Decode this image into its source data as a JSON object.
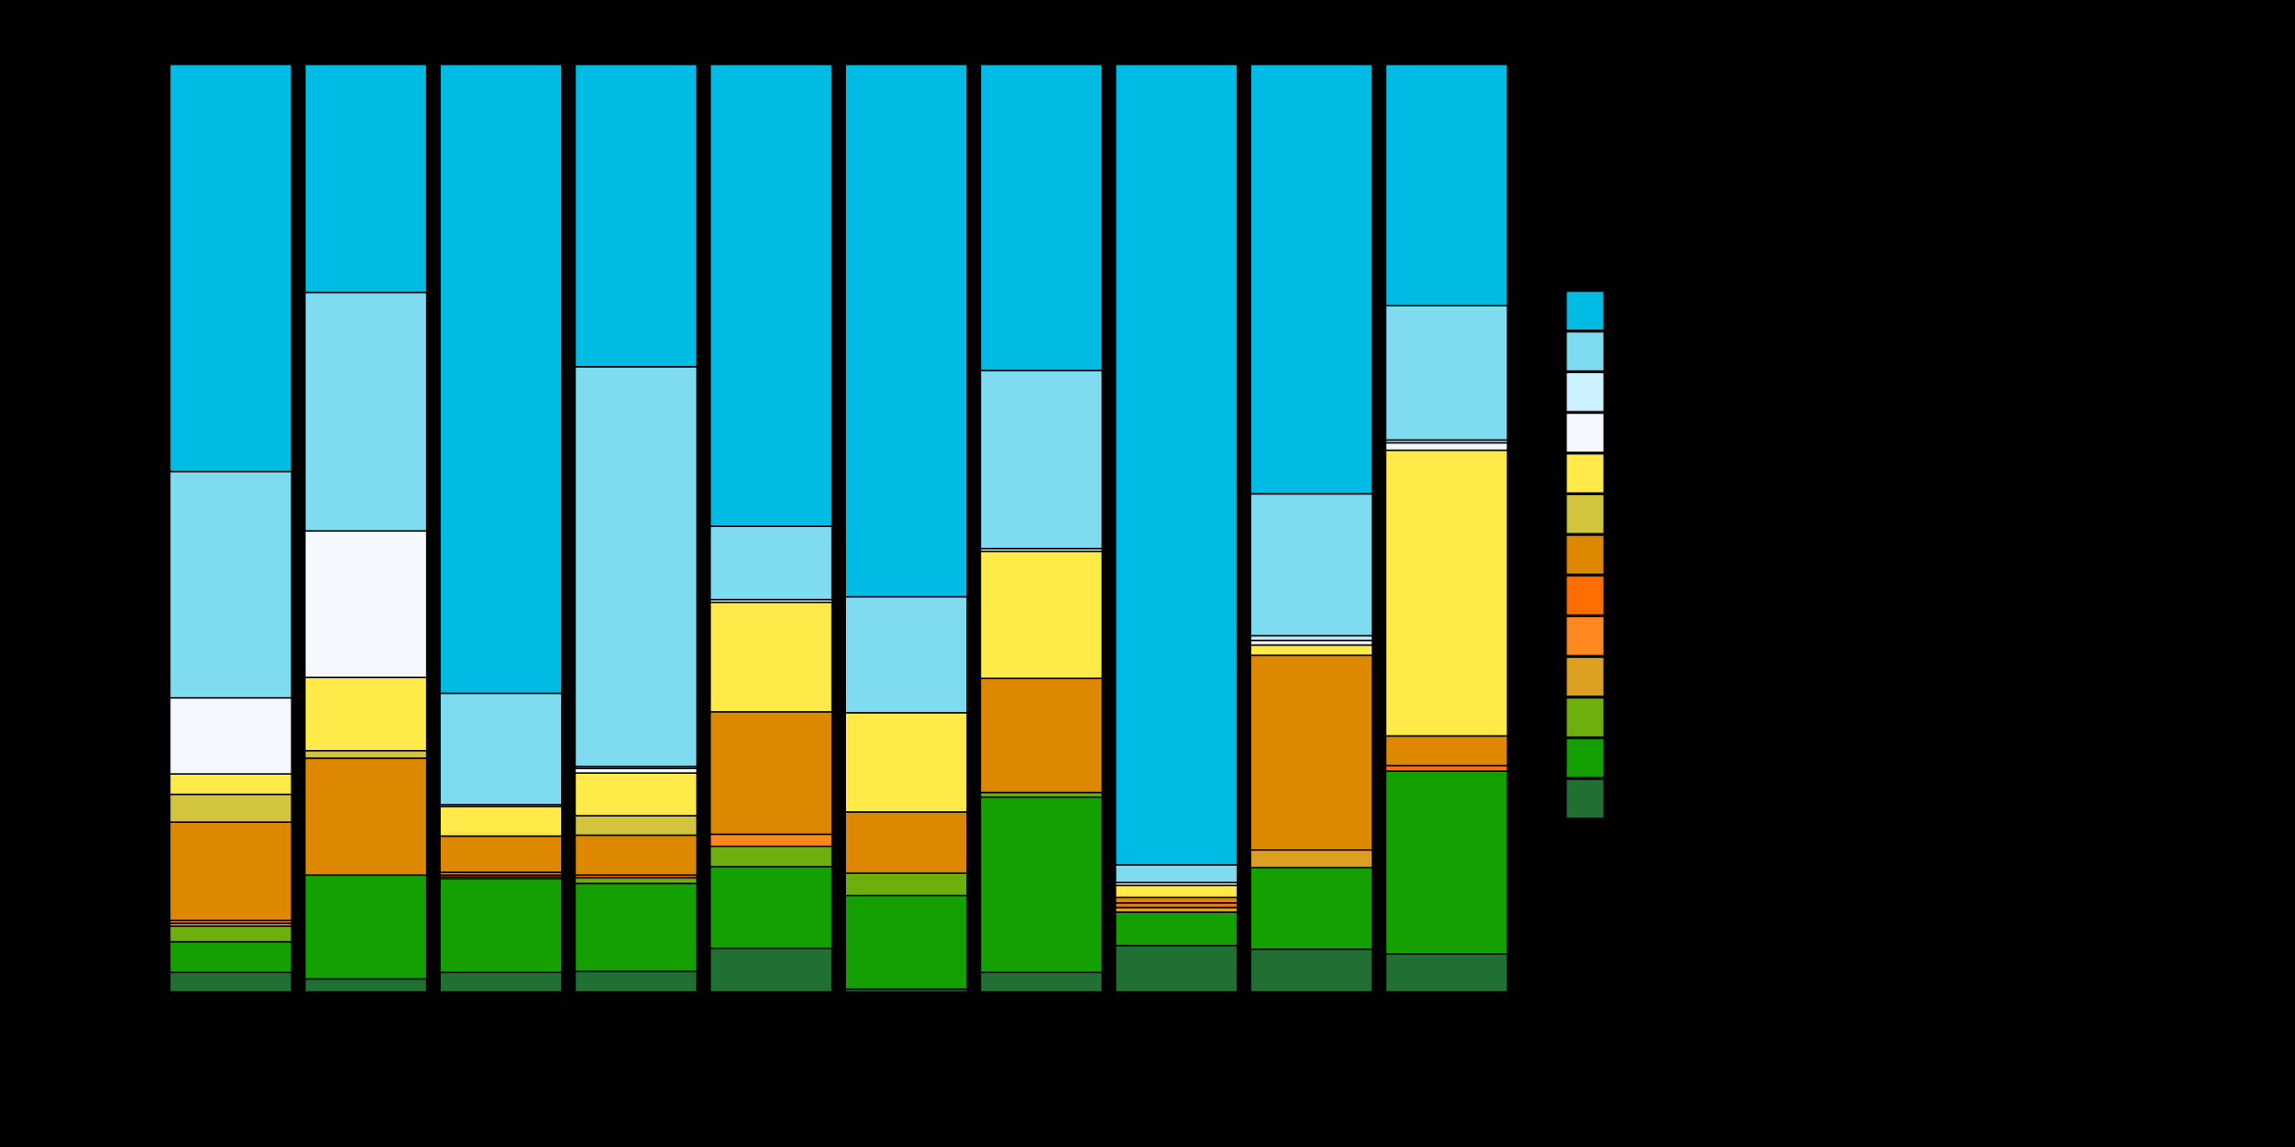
{
  "chart_data": {
    "type": "stacked_bar",
    "categories": [
      null,
      null,
      null,
      null,
      null,
      null,
      null,
      null,
      null,
      null
    ],
    "ylim": [
      0,
      100
    ],
    "series": [
      {
        "color": "#217033",
        "values": [
          2.1,
          1.4,
          2.1,
          2.2,
          4.7,
          0.3,
          2.1,
          5.0,
          4.6,
          4.1
        ]
      },
      {
        "color": "#14a000",
        "values": [
          3.3,
          11.2,
          10.1,
          9.5,
          8.8,
          10.1,
          18.9,
          3.6,
          8.8,
          19.7
        ]
      },
      {
        "color": "#6db00e",
        "values": [
          1.7,
          0,
          0.2,
          0.6,
          2.2,
          2.4,
          0.5,
          0,
          0,
          0
        ]
      },
      {
        "color": "#dca020",
        "values": [
          0,
          0,
          0,
          0,
          0,
          0,
          0,
          0.5,
          1.9,
          0
        ]
      },
      {
        "color": "#ff8820",
        "values": [
          0.3,
          0,
          0.2,
          0,
          1.3,
          0,
          0,
          0,
          0,
          0
        ]
      },
      {
        "color": "#ff6e00",
        "values": [
          0.3,
          0,
          0.3,
          0.3,
          0,
          0,
          0,
          0.5,
          0,
          0.6
        ]
      },
      {
        "color": "#dd8800",
        "values": [
          10.6,
          12.6,
          3.9,
          4.3,
          13.2,
          6.6,
          12.3,
          0.6,
          21.0,
          3.2
        ]
      },
      {
        "color": "#d3c43e",
        "values": [
          3.0,
          0.8,
          0,
          2.1,
          0,
          0,
          0,
          0,
          0,
          0
        ]
      },
      {
        "color": "#ffea4a",
        "values": [
          2.2,
          7.9,
          3.2,
          4.6,
          11.8,
          10.7,
          13.7,
          1.3,
          1.1,
          30.8
        ]
      },
      {
        "color": "#f5f8ff",
        "values": [
          8.2,
          15.8,
          0,
          0.5,
          0,
          0,
          0,
          0.3,
          0.5,
          0.8
        ]
      },
      {
        "color": "#ccf1ff",
        "values": [
          0,
          0,
          0.2,
          0.2,
          0.3,
          0,
          0.3,
          0,
          0.5,
          0.3
        ]
      },
      {
        "color": "#7fdcf0",
        "values": [
          24.4,
          25.7,
          12.0,
          43.1,
          7.9,
          12.5,
          19.2,
          1.9,
          15.3,
          14.5
        ]
      },
      {
        "color": "#00bce4",
        "values": [
          43.9,
          24.6,
          67.8,
          32.6,
          49.8,
          57.4,
          33.0,
          86.3,
          46.3,
          26.0
        ]
      }
    ]
  }
}
